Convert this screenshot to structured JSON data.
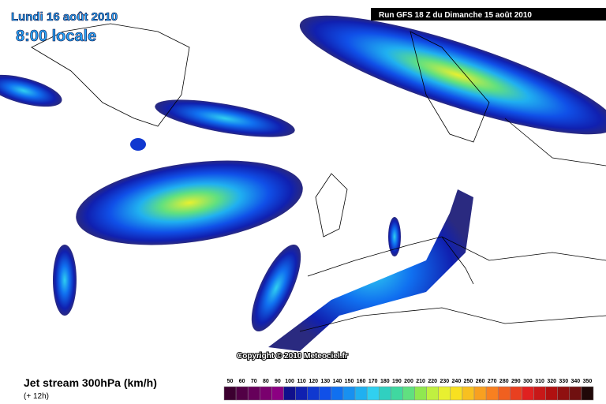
{
  "header": {
    "date": "Lundi 16 août 2010",
    "time": "8:00 locale",
    "run": "Run GFS 18 Z du Dimanche 15 août 2010"
  },
  "copyright": "Copyright © 2010 Meteociel.fr",
  "footer": {
    "title": "Jet stream 300hPa (km/h)",
    "lead": "(+ 12h)"
  },
  "legend": {
    "values": [
      50,
      60,
      70,
      80,
      90,
      100,
      110,
      120,
      130,
      140,
      150,
      160,
      170,
      180,
      190,
      200,
      210,
      220,
      230,
      240,
      250,
      260,
      270,
      280,
      290,
      300,
      310,
      320,
      330,
      340,
      350
    ],
    "colors": [
      "#3c0030",
      "#520046",
      "#66005a",
      "#7a006e",
      "#8c0082",
      "#10108c",
      "#1020b0",
      "#1038d0",
      "#1050e8",
      "#1070f0",
      "#1890f0",
      "#20b0f0",
      "#30d0f0",
      "#30d0c0",
      "#40d8a0",
      "#60e080",
      "#90e850",
      "#c0f040",
      "#e8f030",
      "#f8e020",
      "#f8c020",
      "#f8a020",
      "#f88020",
      "#f06020",
      "#e84020",
      "#e02020",
      "#c81818",
      "#b01010",
      "#901010",
      "#701010",
      "#200808"
    ]
  }
}
